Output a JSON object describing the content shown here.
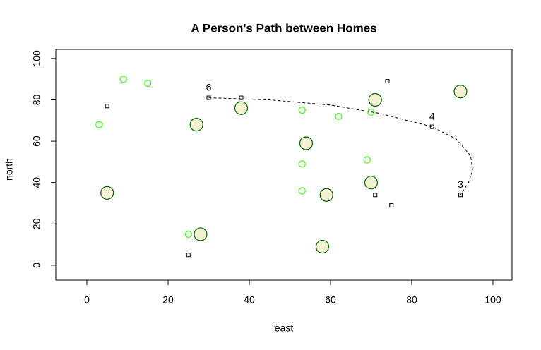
{
  "chart_data": {
    "type": "scatter",
    "title": "A Person's Path between Homes",
    "x_label": "east",
    "y_label": "north",
    "xlim": [
      -7.65,
      104.7
    ],
    "ylim": [
      -7.2,
      104.4
    ],
    "xticks": [
      0,
      20,
      40,
      60,
      80,
      100
    ],
    "yticks": [
      0,
      20,
      40,
      60,
      80,
      100
    ],
    "grid": false,
    "series": [
      {
        "marker": "square",
        "color": "#000000",
        "x": [
          5,
          30,
          38,
          74,
          85,
          92,
          71,
          75,
          25
        ],
        "y": [
          77,
          81,
          81,
          89,
          67,
          34,
          34,
          29,
          5
        ]
      },
      {
        "marker": "circle-small",
        "color": "#33ff00",
        "x": [
          9,
          15,
          3,
          53,
          62,
          70,
          53,
          69,
          53,
          25
        ],
        "y": [
          90,
          88,
          68,
          75,
          72,
          74,
          49,
          51,
          36,
          15
        ]
      },
      {
        "marker": "circle-large",
        "color": "#006400",
        "fill": "#f5f0d2",
        "x": [
          27,
          38,
          71,
          92,
          54,
          5,
          70,
          59,
          28,
          58
        ],
        "y": [
          68,
          76,
          80,
          84,
          59,
          35,
          40,
          34,
          15,
          9
        ]
      },
      {
        "marker": "dashed-line",
        "color": "#000000",
        "x": [
          30,
          45,
          60,
          72,
          85,
          91,
          94.5,
          95,
          94,
          92
        ],
        "y": [
          81,
          80,
          77.5,
          73.5,
          67,
          61,
          53,
          46,
          40,
          34
        ]
      }
    ],
    "annotations": [
      {
        "text": "6",
        "x": 30,
        "y": 81
      },
      {
        "text": "4",
        "x": 85,
        "y": 67
      },
      {
        "text": "3",
        "x": 92,
        "y": 34
      }
    ]
  }
}
